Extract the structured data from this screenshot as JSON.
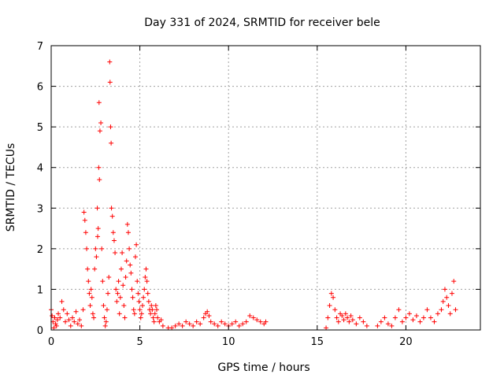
{
  "chart_data": {
    "type": "scatter",
    "title": "Day 331 of 2024, SRMTID for receiver bele",
    "xlabel": "GPS time / hours",
    "ylabel": "SRMTID / TECUs",
    "xlim": [
      0,
      24.2
    ],
    "ylim": [
      0,
      7
    ],
    "xticks": [
      0,
      5,
      10,
      15,
      20
    ],
    "yticks": [
      0,
      1,
      2,
      3,
      4,
      5,
      6,
      7
    ],
    "grid": true,
    "marker": "+",
    "color": "#ff0000",
    "series": [
      {
        "name": "SRMTID",
        "x": [
          0.0,
          0.05,
          0.1,
          0.15,
          0.2,
          0.25,
          0.3,
          0.35,
          0.4,
          0.5,
          0.6,
          0.7,
          0.8,
          0.9,
          1.0,
          1.1,
          1.2,
          1.3,
          1.4,
          1.5,
          1.6,
          1.7,
          1.8,
          1.85,
          1.9,
          1.95,
          2.0,
          2.05,
          2.1,
          2.15,
          2.2,
          2.25,
          2.3,
          2.35,
          2.4,
          2.45,
          2.5,
          2.55,
          2.6,
          2.62,
          2.65,
          2.68,
          2.7,
          2.72,
          2.75,
          2.8,
          2.85,
          2.9,
          2.95,
          3.0,
          3.05,
          3.1,
          3.15,
          3.2,
          3.25,
          3.3,
          3.32,
          3.35,
          3.38,
          3.4,
          3.45,
          3.5,
          3.55,
          3.6,
          3.65,
          3.7,
          3.75,
          3.8,
          3.85,
          3.9,
          3.95,
          4.0,
          4.05,
          4.1,
          4.15,
          4.2,
          4.25,
          4.3,
          4.35,
          4.4,
          4.45,
          4.5,
          4.55,
          4.6,
          4.65,
          4.7,
          4.75,
          4.8,
          4.85,
          4.9,
          4.95,
          5.0,
          5.05,
          5.1,
          5.15,
          5.2,
          5.25,
          5.3,
          5.35,
          5.4,
          5.45,
          5.5,
          5.55,
          5.6,
          5.65,
          5.7,
          5.75,
          5.8,
          5.85,
          5.9,
          5.95,
          6.0,
          6.1,
          6.2,
          6.3,
          6.6,
          6.8,
          7.0,
          7.2,
          7.4,
          7.6,
          7.8,
          8.0,
          8.2,
          8.4,
          8.6,
          8.7,
          8.8,
          8.9,
          9.0,
          9.2,
          9.4,
          9.6,
          9.8,
          10.0,
          10.2,
          10.4,
          10.6,
          10.8,
          11.0,
          11.2,
          11.4,
          11.6,
          11.8,
          12.0,
          12.1,
          15.5,
          15.6,
          15.7,
          15.8,
          15.9,
          16.0,
          16.1,
          16.2,
          16.3,
          16.4,
          16.5,
          16.6,
          16.7,
          16.8,
          16.9,
          17.0,
          17.2,
          17.4,
          17.6,
          17.8,
          18.4,
          18.6,
          18.8,
          19.0,
          19.2,
          19.4,
          19.6,
          19.8,
          20.0,
          20.2,
          20.4,
          20.6,
          20.8,
          21.0,
          21.2,
          21.4,
          21.6,
          21.8,
          22.0,
          22.1,
          22.2,
          22.3,
          22.4,
          22.5,
          22.6,
          22.7,
          22.8
        ],
        "y": [
          0.5,
          0.35,
          0.2,
          0.05,
          0.3,
          0.15,
          0.1,
          0.25,
          0.4,
          0.3,
          0.7,
          0.5,
          0.2,
          0.4,
          0.25,
          0.1,
          0.3,
          0.2,
          0.45,
          0.15,
          0.25,
          0.1,
          0.5,
          2.9,
          2.7,
          2.4,
          2.0,
          1.5,
          1.2,
          0.9,
          0.6,
          1.0,
          0.8,
          0.4,
          0.3,
          1.5,
          2.0,
          1.8,
          3.0,
          2.3,
          2.5,
          4.0,
          5.6,
          3.7,
          4.9,
          5.1,
          2.0,
          1.2,
          0.6,
          0.3,
          0.1,
          0.2,
          0.5,
          0.9,
          1.3,
          6.6,
          6.1,
          5.0,
          4.6,
          3.0,
          2.8,
          2.4,
          2.2,
          1.9,
          1.0,
          0.7,
          0.9,
          1.2,
          0.4,
          0.8,
          1.5,
          1.9,
          1.1,
          0.6,
          0.3,
          1.3,
          1.7,
          2.6,
          2.4,
          2.0,
          1.6,
          1.4,
          1.0,
          0.8,
          0.5,
          0.4,
          1.8,
          2.1,
          1.2,
          0.9,
          0.7,
          0.5,
          0.3,
          0.4,
          0.6,
          0.8,
          1.0,
          1.3,
          1.5,
          1.2,
          0.9,
          0.7,
          0.5,
          0.4,
          0.6,
          0.5,
          0.3,
          0.2,
          0.4,
          0.6,
          0.5,
          0.3,
          0.2,
          0.25,
          0.1,
          0.05,
          0.05,
          0.1,
          0.15,
          0.1,
          0.2,
          0.15,
          0.1,
          0.2,
          0.15,
          0.3,
          0.4,
          0.45,
          0.35,
          0.2,
          0.15,
          0.1,
          0.2,
          0.15,
          0.1,
          0.15,
          0.2,
          0.1,
          0.15,
          0.2,
          0.35,
          0.3,
          0.25,
          0.2,
          0.15,
          0.2,
          0.05,
          0.3,
          0.6,
          0.9,
          0.8,
          0.5,
          0.3,
          0.2,
          0.4,
          0.35,
          0.25,
          0.4,
          0.3,
          0.2,
          0.35,
          0.25,
          0.15,
          0.3,
          0.2,
          0.1,
          0.1,
          0.2,
          0.3,
          0.15,
          0.1,
          0.3,
          0.5,
          0.2,
          0.3,
          0.4,
          0.25,
          0.35,
          0.2,
          0.3,
          0.5,
          0.3,
          0.2,
          0.4,
          0.5,
          0.7,
          1.0,
          0.8,
          0.6,
          0.4,
          0.9,
          1.2,
          0.5
        ]
      }
    ]
  }
}
